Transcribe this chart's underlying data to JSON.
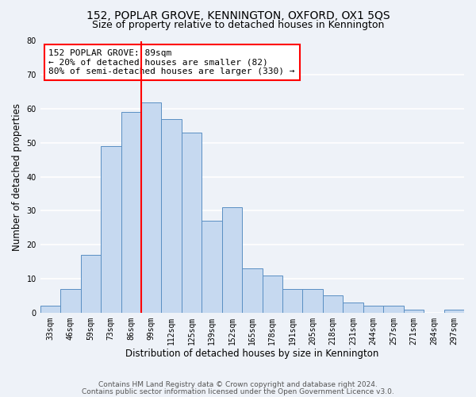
{
  "title": "152, POPLAR GROVE, KENNINGTON, OXFORD, OX1 5QS",
  "subtitle": "Size of property relative to detached houses in Kennington",
  "xlabel": "Distribution of detached houses by size in Kennington",
  "ylabel": "Number of detached properties",
  "bar_labels": [
    "33sqm",
    "46sqm",
    "59sqm",
    "73sqm",
    "86sqm",
    "99sqm",
    "112sqm",
    "125sqm",
    "139sqm",
    "152sqm",
    "165sqm",
    "178sqm",
    "191sqm",
    "205sqm",
    "218sqm",
    "231sqm",
    "244sqm",
    "257sqm",
    "271sqm",
    "284sqm",
    "297sqm"
  ],
  "bar_values": [
    2,
    7,
    17,
    49,
    59,
    62,
    57,
    53,
    27,
    31,
    13,
    11,
    7,
    7,
    5,
    3,
    2,
    2,
    1,
    0,
    1
  ],
  "bar_color": "#c6d9f0",
  "bar_edge_color": "#5a8fc3",
  "vline_x_index": 4,
  "vline_color": "red",
  "annotation_text": "152 POPLAR GROVE: 89sqm\n← 20% of detached houses are smaller (82)\n80% of semi-detached houses are larger (330) →",
  "annotation_box_color": "white",
  "annotation_box_edge": "red",
  "ylim": [
    0,
    80
  ],
  "yticks": [
    0,
    10,
    20,
    30,
    40,
    50,
    60,
    70,
    80
  ],
  "footer_line1": "Contains HM Land Registry data © Crown copyright and database right 2024.",
  "footer_line2": "Contains public sector information licensed under the Open Government Licence v3.0.",
  "background_color": "#eef2f8",
  "grid_color": "white",
  "title_fontsize": 10,
  "subtitle_fontsize": 9,
  "axis_label_fontsize": 8.5,
  "tick_fontsize": 7,
  "annotation_fontsize": 8,
  "footer_fontsize": 6.5
}
